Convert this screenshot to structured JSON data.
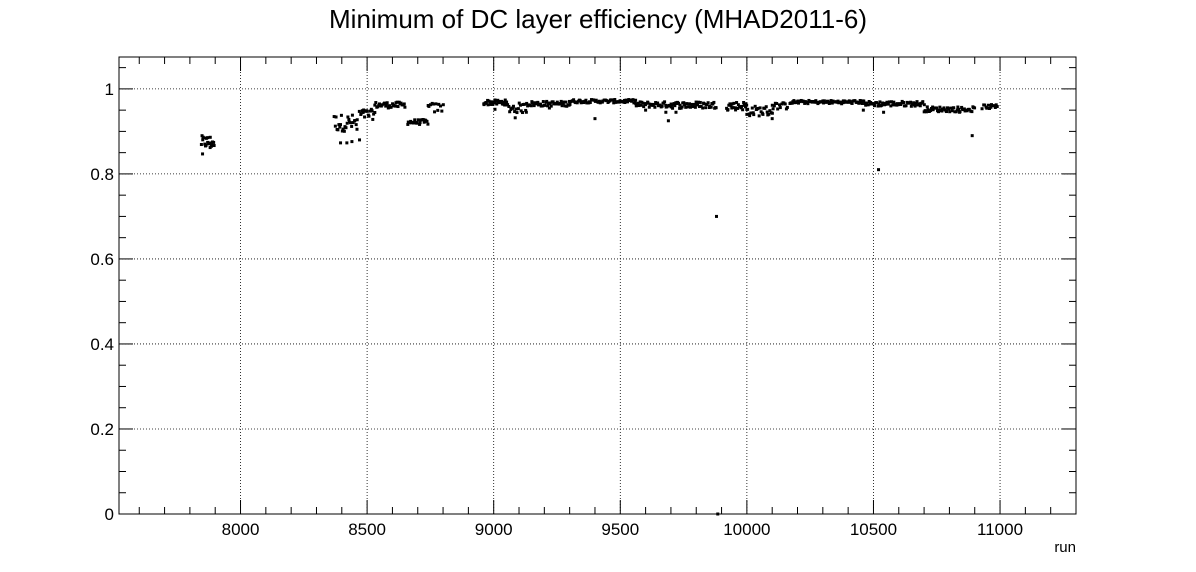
{
  "chart_data": {
    "type": "scatter",
    "title": "Minimum of DC layer efficiency (MHAD2011-6)",
    "xlabel": "run",
    "ylabel": "",
    "xlim": [
      7520,
      11300
    ],
    "ylim": [
      0,
      1.075
    ],
    "xticks": [
      8000,
      8500,
      9000,
      9500,
      10000,
      10500,
      11000
    ],
    "xtick_labels": [
      "8000",
      "8500",
      "9000",
      "9500",
      "10000",
      "10500",
      "11000"
    ],
    "yticks": [
      0,
      0.2,
      0.4,
      0.6,
      0.8,
      1
    ],
    "ytick_labels": [
      "0",
      "0.2",
      "0.4",
      "0.6",
      "0.8",
      "1"
    ],
    "grid": true,
    "marker_color": "#000000",
    "segments": [
      {
        "x_start": 7845,
        "x_end": 7895,
        "y_base": 0.875,
        "amp": 0.015,
        "count": 20
      },
      {
        "x_start": 8370,
        "x_end": 8460,
        "y_base": 0.92,
        "amp": 0.02,
        "count": 26
      },
      {
        "x_start": 8470,
        "x_end": 8530,
        "y_base": 0.94,
        "amp": 0.012,
        "count": 18
      },
      {
        "x_start": 8530,
        "x_end": 8650,
        "y_base": 0.962,
        "amp": 0.007,
        "count": 32
      },
      {
        "x_start": 8660,
        "x_end": 8740,
        "y_base": 0.922,
        "amp": 0.006,
        "count": 22
      },
      {
        "x_start": 8740,
        "x_end": 8800,
        "y_base": 0.955,
        "amp": 0.012,
        "count": 12
      },
      {
        "x_start": 8960,
        "x_end": 9050,
        "y_base": 0.968,
        "amp": 0.006,
        "count": 30
      },
      {
        "x_start": 9050,
        "x_end": 9130,
        "y_base": 0.955,
        "amp": 0.012,
        "count": 20
      },
      {
        "x_start": 9130,
        "x_end": 9300,
        "y_base": 0.965,
        "amp": 0.006,
        "count": 50
      },
      {
        "x_start": 9300,
        "x_end": 9560,
        "y_base": 0.971,
        "amp": 0.004,
        "count": 70
      },
      {
        "x_start": 9560,
        "x_end": 9700,
        "y_base": 0.963,
        "amp": 0.007,
        "count": 40
      },
      {
        "x_start": 9700,
        "x_end": 9880,
        "y_base": 0.962,
        "amp": 0.008,
        "count": 50
      },
      {
        "x_start": 9920,
        "x_end": 10000,
        "y_base": 0.96,
        "amp": 0.01,
        "count": 25
      },
      {
        "x_start": 10000,
        "x_end": 10100,
        "y_base": 0.948,
        "amp": 0.012,
        "count": 26
      },
      {
        "x_start": 10100,
        "x_end": 10160,
        "y_base": 0.96,
        "amp": 0.008,
        "count": 14
      },
      {
        "x_start": 10170,
        "x_end": 10470,
        "y_base": 0.969,
        "amp": 0.004,
        "count": 80
      },
      {
        "x_start": 10470,
        "x_end": 10700,
        "y_base": 0.965,
        "amp": 0.006,
        "count": 60
      },
      {
        "x_start": 10700,
        "x_end": 10900,
        "y_base": 0.952,
        "amp": 0.006,
        "count": 50
      },
      {
        "x_start": 10930,
        "x_end": 10990,
        "y_base": 0.958,
        "amp": 0.005,
        "count": 14
      }
    ],
    "points": [
      [
        7850,
        0.847
      ],
      [
        7880,
        0.862
      ],
      [
        8395,
        0.873
      ],
      [
        8420,
        0.873
      ],
      [
        8440,
        0.876
      ],
      [
        8470,
        0.88
      ],
      [
        8460,
        0.905
      ],
      [
        9005,
        0.952
      ],
      [
        9085,
        0.932
      ],
      [
        9220,
        0.955
      ],
      [
        9400,
        0.93
      ],
      [
        9600,
        0.95
      ],
      [
        9680,
        0.945
      ],
      [
        9690,
        0.925
      ],
      [
        9720,
        0.945
      ],
      [
        9880,
        0.7
      ],
      [
        9885,
        0.0
      ],
      [
        10000,
        0.94
      ],
      [
        10100,
        0.93
      ],
      [
        10460,
        0.95
      ],
      [
        10520,
        0.81
      ],
      [
        10540,
        0.945
      ],
      [
        10760,
        0.95
      ],
      [
        10840,
        0.945
      ],
      [
        10890,
        0.89
      ]
    ]
  }
}
